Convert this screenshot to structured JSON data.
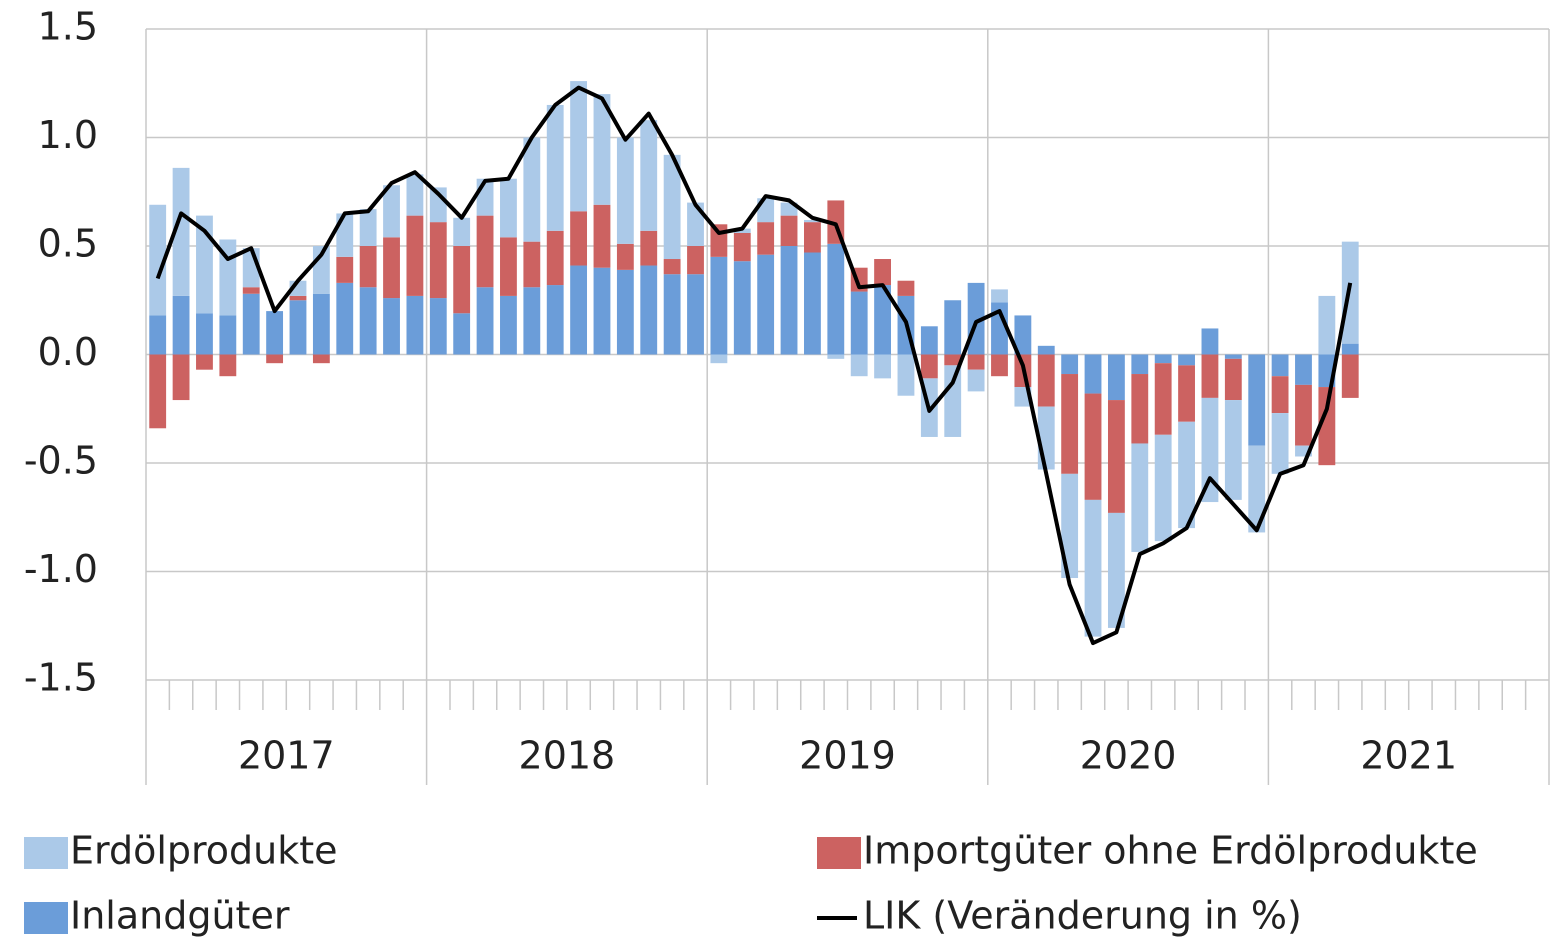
{
  "chart_data": {
    "type": "stacked_bar_line",
    "categories": [
      null,
      null,
      null,
      null,
      null,
      null,
      null,
      null,
      null,
      null,
      null,
      null,
      null,
      null,
      null,
      null,
      null,
      null,
      null,
      null,
      null,
      null,
      null,
      null,
      null,
      null,
      null,
      null,
      null,
      null,
      null,
      null,
      null,
      null,
      null,
      null,
      null,
      null,
      null,
      null,
      null,
      null,
      null,
      null,
      null,
      null,
      null,
      null,
      null,
      null,
      null,
      null,
      null,
      null,
      null,
      null,
      null,
      null,
      null,
      null
    ],
    "year_groups": [
      "2017",
      "2018",
      "2019",
      "2020",
      "2021"
    ],
    "series": [
      {
        "name": "Erdölprodukte",
        "kind": "bar",
        "color": "#abc9e8",
        "values": [
          0.51,
          0.59,
          0.45,
          0.35,
          0.18,
          0,
          0.07,
          0.22,
          0.2,
          0.17,
          0.24,
          0.19,
          0.16,
          0.13,
          0.17,
          0.27,
          0.48,
          0.58,
          0.6,
          0.51,
          0.49,
          0.51,
          0.48,
          0.2,
          -0.04,
          0.02,
          0.11,
          0.06,
          0.01,
          -0.02,
          -0.1,
          -0.11,
          -0.19,
          -0.27,
          -0.33,
          -0.1,
          0.06,
          -0.09,
          -0.29,
          -0.48,
          -0.63,
          -0.53,
          -0.5,
          -0.49,
          -0.49,
          -0.48,
          -0.46,
          -0.4,
          -0.28,
          -0.05,
          0.27,
          0.47,
          null,
          null,
          null,
          null,
          null,
          null,
          null,
          null
        ]
      },
      {
        "name": "Importgüter ohne Erdölprodukte",
        "kind": "bar",
        "color": "#cc6261",
        "values": [
          -0.34,
          -0.21,
          -0.07,
          -0.1,
          0.03,
          -0.04,
          0.02,
          -0.04,
          0.12,
          0.19,
          0.28,
          0.37,
          0.35,
          0.31,
          0.33,
          0.27,
          0.21,
          0.25,
          0.25,
          0.29,
          0.12,
          0.16,
          0.07,
          0.13,
          0.15,
          0.13,
          0.15,
          0.14,
          0.14,
          0.2,
          0.11,
          0.12,
          0.07,
          -0.11,
          -0.05,
          -0.07,
          -0.1,
          -0.15,
          -0.24,
          -0.46,
          -0.49,
          -0.52,
          -0.32,
          -0.33,
          -0.26,
          -0.2,
          -0.19,
          0,
          -0.17,
          -0.28,
          -0.36,
          -0.2,
          null,
          null,
          null,
          null,
          null,
          null,
          null,
          null
        ]
      },
      {
        "name": "Inlandgüter",
        "kind": "bar",
        "color": "#6b9dd9",
        "values": [
          0.18,
          0.27,
          0.19,
          0.18,
          0.28,
          0.2,
          0.25,
          0.28,
          0.33,
          0.31,
          0.26,
          0.27,
          0.26,
          0.19,
          0.31,
          0.27,
          0.31,
          0.32,
          0.41,
          0.4,
          0.39,
          0.41,
          0.37,
          0.37,
          0.45,
          0.43,
          0.46,
          0.5,
          0.47,
          0.51,
          0.29,
          0.32,
          0.27,
          0.13,
          0.25,
          0.33,
          0.24,
          0.18,
          0.04,
          -0.09,
          -0.18,
          -0.21,
          -0.09,
          -0.04,
          -0.05,
          0.12,
          -0.02,
          -0.42,
          -0.1,
          -0.14,
          -0.15,
          0.05,
          null,
          null,
          null,
          null,
          null,
          null,
          null,
          null
        ]
      },
      {
        "name": "LIK (Veränderung in %)",
        "kind": "line",
        "color": "#000000",
        "values": [
          0.35,
          0.65,
          0.57,
          0.44,
          0.49,
          0.2,
          0.34,
          0.46,
          0.65,
          0.66,
          0.79,
          0.84,
          0.74,
          0.63,
          0.8,
          0.81,
          1.0,
          1.15,
          1.23,
          1.18,
          0.99,
          1.11,
          0.92,
          0.69,
          0.56,
          0.58,
          0.73,
          0.71,
          0.63,
          0.6,
          0.31,
          0.32,
          0.15,
          -0.26,
          -0.13,
          0.15,
          0.2,
          -0.05,
          -0.55,
          -1.06,
          -1.33,
          -1.28,
          -0.92,
          -0.87,
          -0.8,
          -0.57,
          -0.69,
          -0.81,
          -0.55,
          -0.51,
          -0.25,
          0.33,
          null,
          null,
          null,
          null,
          null,
          null,
          null,
          null
        ]
      }
    ],
    "ylim": [
      -1.5,
      1.5
    ],
    "yticks": [
      1.5,
      {
        "value": 1,
        "label": "1.0"
      },
      0.5,
      {
        "value": 0,
        "label": "0.0"
      },
      -0.5,
      {
        "value": -1,
        "label": "-1.0"
      },
      -1.5
    ],
    "grid": true,
    "legend": "bottom"
  }
}
